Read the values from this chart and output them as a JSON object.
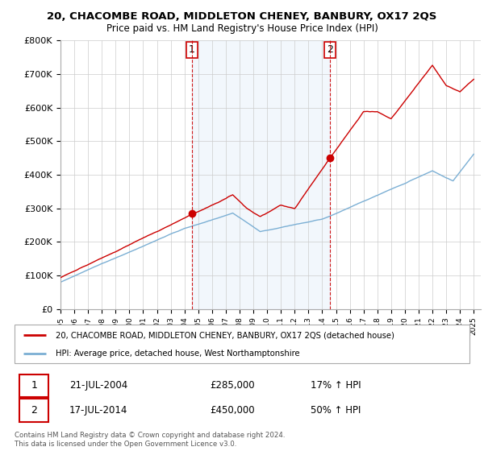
{
  "title": "20, CHACOMBE ROAD, MIDDLETON CHENEY, BANBURY, OX17 2QS",
  "subtitle": "Price paid vs. HM Land Registry's House Price Index (HPI)",
  "legend_line1": "20, CHACOMBE ROAD, MIDDLETON CHENEY, BANBURY, OX17 2QS (detached house)",
  "legend_line2": "HPI: Average price, detached house, West Northamptonshire",
  "footer": "Contains HM Land Registry data © Crown copyright and database right 2024.\nThis data is licensed under the Open Government Licence v3.0.",
  "sale1_date": "21-JUL-2004",
  "sale1_price": "£285,000",
  "sale1_hpi": "17% ↑ HPI",
  "sale2_date": "17-JUL-2014",
  "sale2_price": "£450,000",
  "sale2_hpi": "50% ↑ HPI",
  "red_color": "#cc0000",
  "blue_color": "#7bafd4",
  "shade_color": "#ddeeff",
  "dashed_color": "#cc0000",
  "ylim_min": 0,
  "ylim_max": 800000,
  "yticks": [
    0,
    100000,
    200000,
    300000,
    400000,
    500000,
    600000,
    700000,
    800000
  ],
  "ytick_labels": [
    "£0",
    "£100K",
    "£200K",
    "£300K",
    "£400K",
    "£500K",
    "£600K",
    "£700K",
    "£800K"
  ],
  "sale1_x": 2004.54,
  "sale1_y": 285000,
  "sale2_x": 2014.54,
  "sale2_y": 450000,
  "xlim_min": 1995.0,
  "xlim_max": 2025.5
}
